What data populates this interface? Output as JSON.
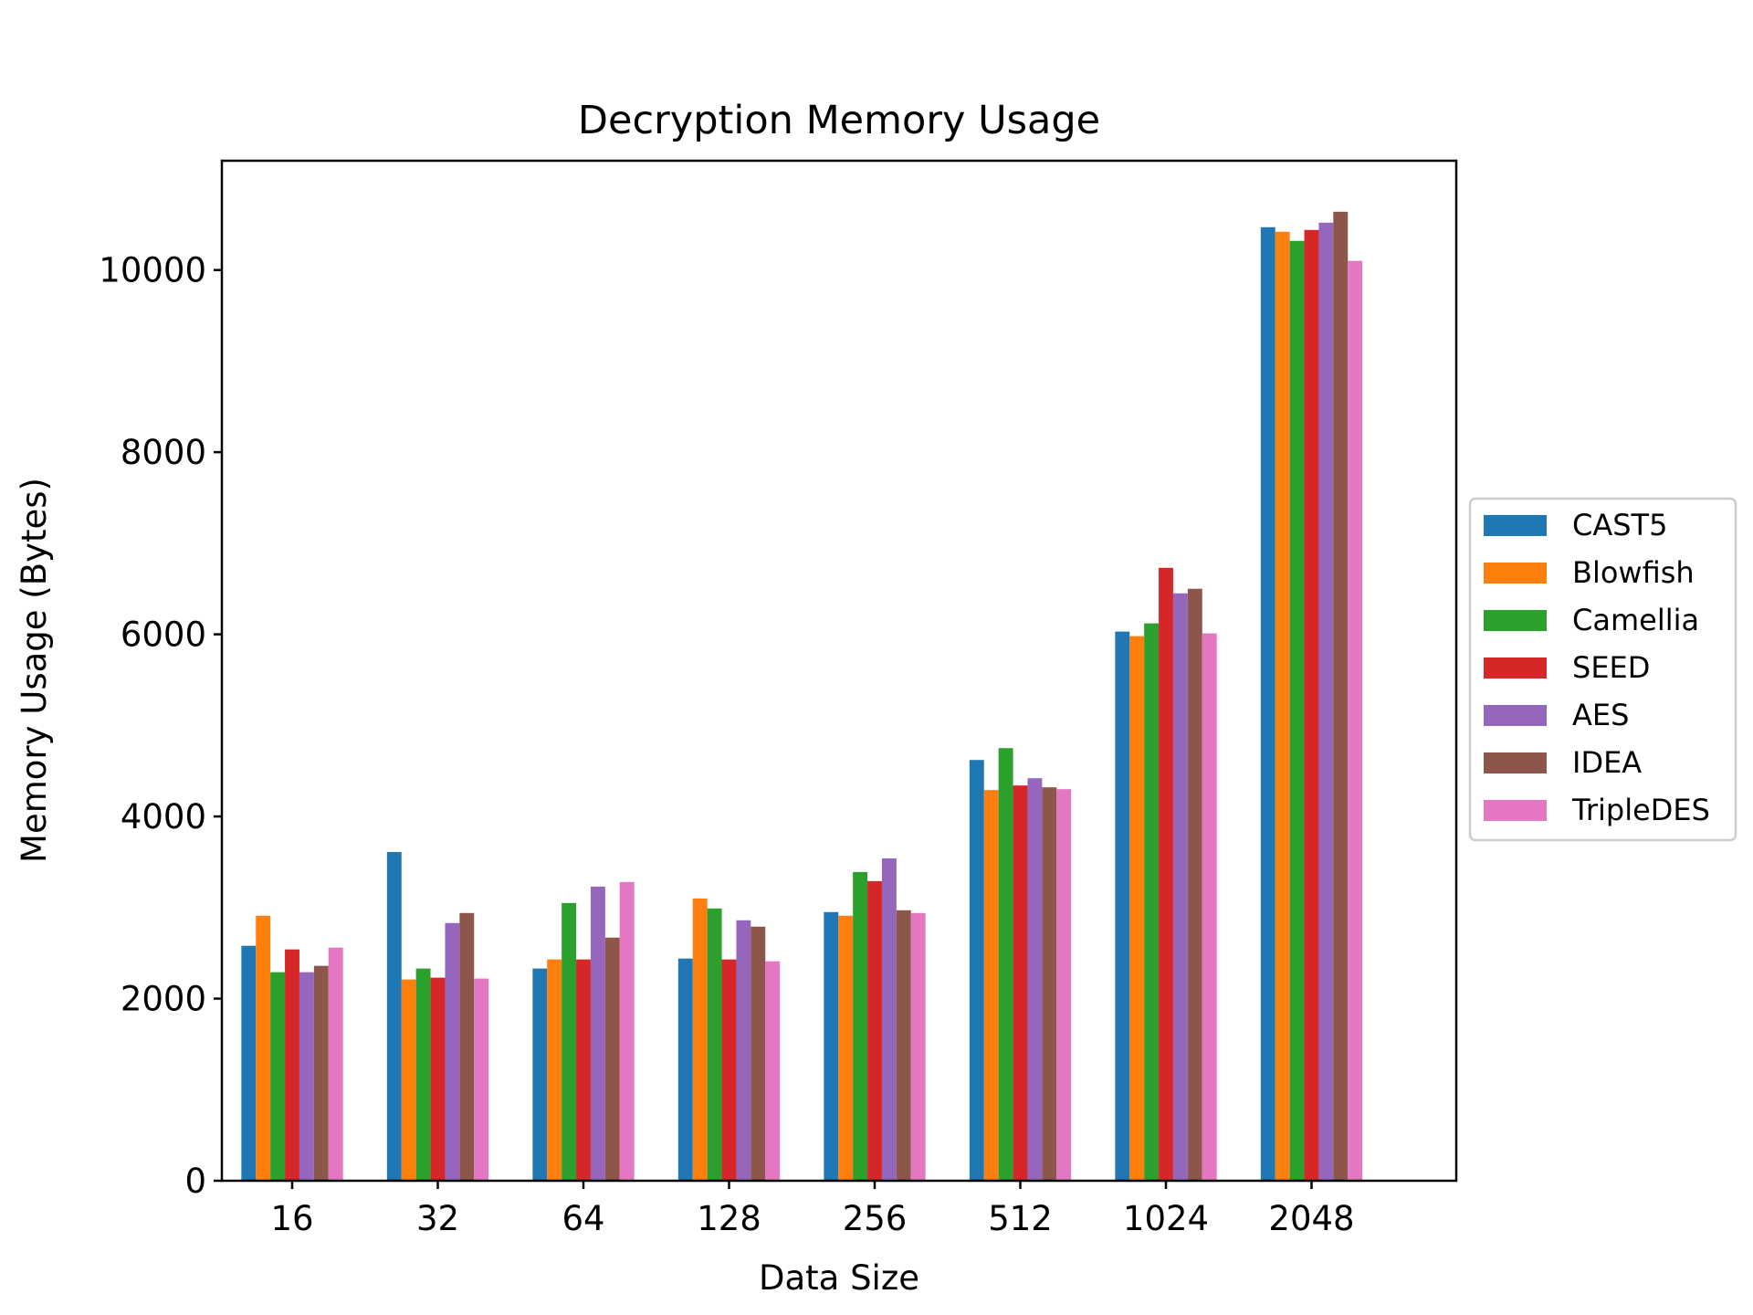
{
  "chart_data": {
    "type": "bar",
    "title": "Decryption Memory Usage",
    "xlabel": "Data Size",
    "ylabel": "Memory Usage (Bytes)",
    "categories": [
      "16",
      "32",
      "64",
      "128",
      "256",
      "512",
      "1024",
      "2048"
    ],
    "ylim": [
      0,
      11200
    ],
    "yticks": [
      0,
      2000,
      4000,
      6000,
      8000,
      10000
    ],
    "ytick_labels": [
      "0",
      "2000",
      "4000",
      "6000",
      "8000",
      "10000"
    ],
    "grid": false,
    "legend_position": "right, outside plot",
    "series": [
      {
        "name": "CAST5",
        "color": "#1f77b4",
        "values": [
          2580,
          3610,
          2330,
          2440,
          2950,
          4620,
          6030,
          10470
        ]
      },
      {
        "name": "Blowfish",
        "color": "#ff7f0e",
        "values": [
          2910,
          2210,
          2430,
          3100,
          2910,
          4290,
          5980,
          10420
        ]
      },
      {
        "name": "Camellia",
        "color": "#2ca02c",
        "values": [
          2290,
          2330,
          3050,
          2990,
          3390,
          4750,
          6120,
          10320
        ]
      },
      {
        "name": "SEED",
        "color": "#d62728",
        "values": [
          2540,
          2230,
          2430,
          2430,
          3290,
          4340,
          6730,
          10440
        ]
      },
      {
        "name": "AES",
        "color": "#9467bd",
        "values": [
          2290,
          2830,
          3230,
          2860,
          3540,
          4420,
          6450,
          10520
        ]
      },
      {
        "name": "IDEA",
        "color": "#8c564b",
        "values": [
          2360,
          2940,
          2670,
          2790,
          2970,
          4320,
          6500,
          10640
        ]
      },
      {
        "name": "TripleDES",
        "color": "#e377c2",
        "values": [
          2560,
          2220,
          3280,
          2410,
          2940,
          4300,
          6010,
          10100
        ]
      }
    ]
  }
}
